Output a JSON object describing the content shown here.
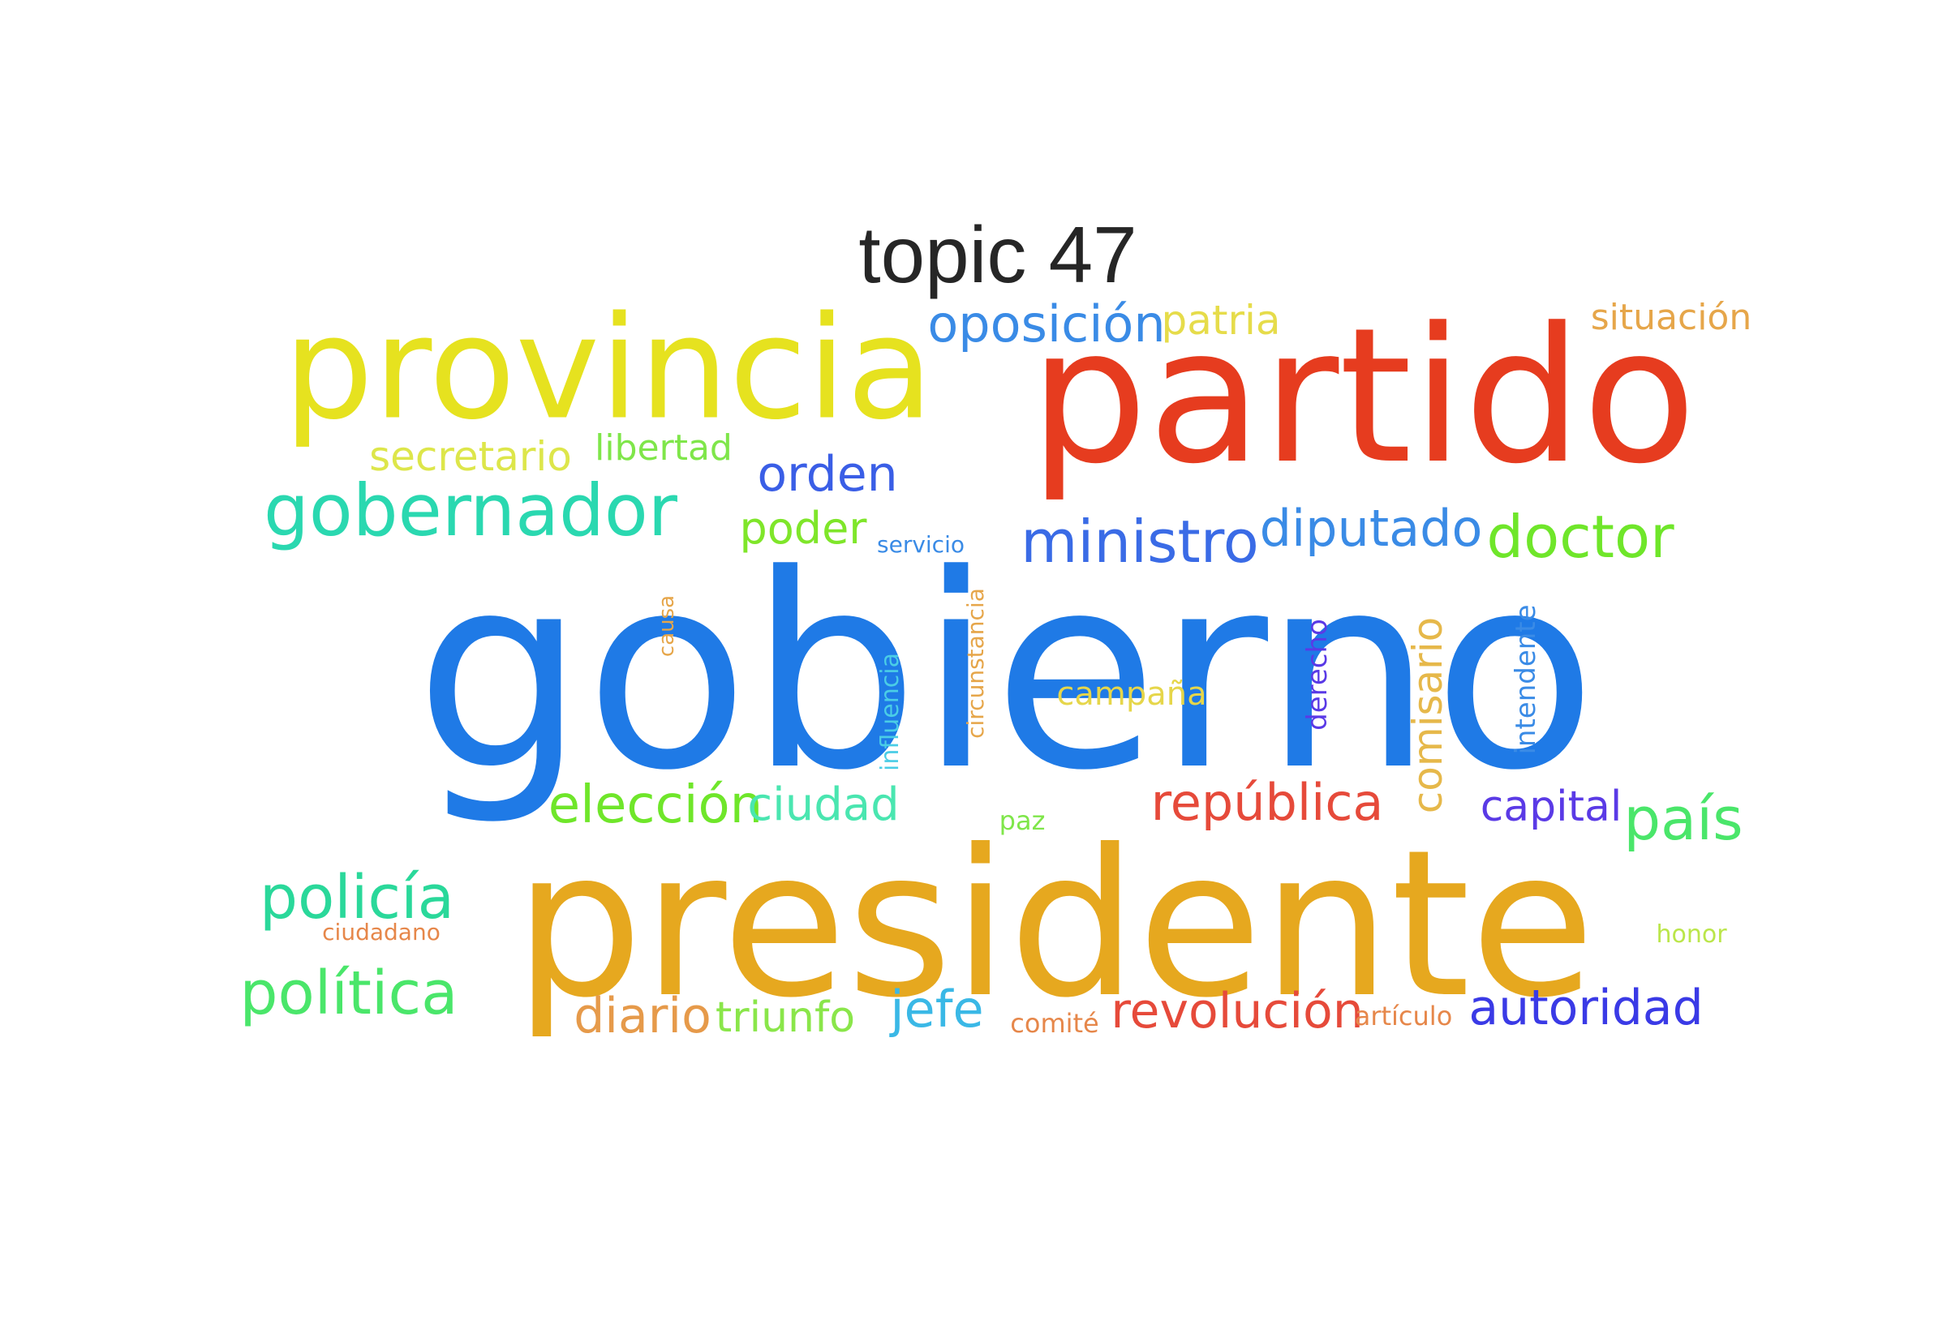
{
  "title": "topic 47",
  "words": [
    {
      "text": "gobierno",
      "color": "#1f7ae6"
    },
    {
      "text": "presidente",
      "color": "#e6a81f"
    },
    {
      "text": "partido",
      "color": "#e63c1f"
    },
    {
      "text": "provincia",
      "color": "#e6e21f"
    },
    {
      "text": "gobernador",
      "color": "#2ad8b0"
    },
    {
      "text": "oposición",
      "color": "#3a8be6"
    },
    {
      "text": "patria",
      "color": "#e6dc4a"
    },
    {
      "text": "situación",
      "color": "#e6a64a"
    },
    {
      "text": "secretario",
      "color": "#dde64a"
    },
    {
      "text": "libertad",
      "color": "#7fe64a"
    },
    {
      "text": "orden",
      "color": "#3a5ee6"
    },
    {
      "text": "poder",
      "color": "#7fe62a"
    },
    {
      "text": "servicio",
      "color": "#3a8be6"
    },
    {
      "text": "ministro",
      "color": "#3a6be6"
    },
    {
      "text": "diputado",
      "color": "#3a8be6"
    },
    {
      "text": "doctor",
      "color": "#6fe62a"
    },
    {
      "text": "causa",
      "color": "#e6a64a"
    },
    {
      "text": "influencia",
      "color": "#4acde6"
    },
    {
      "text": "circunstancia",
      "color": "#e6a64a"
    },
    {
      "text": "campaña",
      "color": "#e6d64a"
    },
    {
      "text": "derecho",
      "color": "#5a3ae6"
    },
    {
      "text": "comisario",
      "color": "#e6b84a"
    },
    {
      "text": "intendente",
      "color": "#3a8be6"
    },
    {
      "text": "elección",
      "color": "#6fe62a"
    },
    {
      "text": "ciudad",
      "color": "#4ae6b0"
    },
    {
      "text": "paz",
      "color": "#7fe64a"
    },
    {
      "text": "república",
      "color": "#e64a3a"
    },
    {
      "text": "capital",
      "color": "#5a3ae6"
    },
    {
      "text": "país",
      "color": "#4ae66a"
    },
    {
      "text": "policía",
      "color": "#2ad89a"
    },
    {
      "text": "ciudadano",
      "color": "#e6874a"
    },
    {
      "text": "honor",
      "color": "#bbe64a"
    },
    {
      "text": "política",
      "color": "#4ae66a"
    },
    {
      "text": "diario",
      "color": "#e69a4a"
    },
    {
      "text": "triunfo",
      "color": "#8ae64a"
    },
    {
      "text": "jefe",
      "color": "#3ab8e6"
    },
    {
      "text": "comité",
      "color": "#e6874a"
    },
    {
      "text": "revolución",
      "color": "#e64a3a"
    },
    {
      "text": "artículo",
      "color": "#e6874a"
    },
    {
      "text": "autoridad",
      "color": "#3a3ae6"
    }
  ]
}
